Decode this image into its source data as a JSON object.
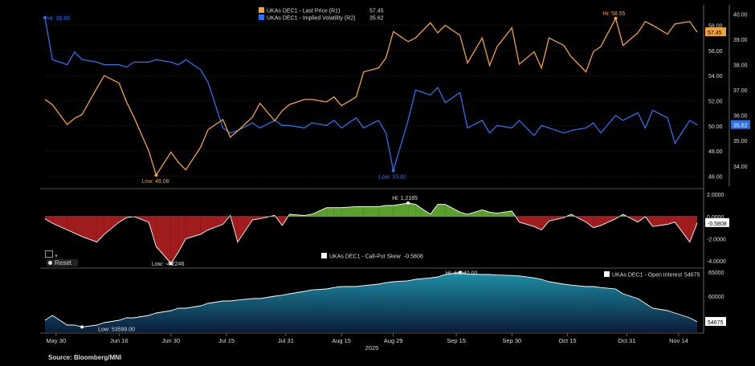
{
  "colors": {
    "background": "#000000",
    "price": "#f2a33a",
    "iv": "#2f6fe8",
    "skew_positive": "#5aa02c",
    "skew_negative": "#a11c1c",
    "oi_top": "#1d8fa6",
    "oi_bottom": "#0a1d3a",
    "text": "#dddddd",
    "grid": "#333333"
  },
  "source": "Source: Bloomberg/MNI",
  "controls": {
    "reset_label": "Reset"
  },
  "chart_data": [
    {
      "type": "line",
      "panel": "price-iv",
      "x_dates": [
        "2025-05-27",
        "2025-05-29",
        "2025-06-02",
        "2025-06-04",
        "2025-06-06",
        "2025-06-10",
        "2025-06-12",
        "2025-06-16",
        "2025-06-18",
        "2025-06-20",
        "2025-06-24",
        "2025-06-26",
        "2025-06-30",
        "2025-07-02",
        "2025-07-04",
        "2025-07-08",
        "2025-07-10",
        "2025-07-14",
        "2025-07-16",
        "2025-07-18",
        "2025-07-22",
        "2025-07-24",
        "2025-07-28",
        "2025-07-30",
        "2025-08-01",
        "2025-08-05",
        "2025-08-07",
        "2025-08-11",
        "2025-08-13",
        "2025-08-15",
        "2025-08-19",
        "2025-08-21",
        "2025-08-25",
        "2025-08-27",
        "2025-08-29",
        "2025-09-02",
        "2025-09-04",
        "2025-09-08",
        "2025-09-10",
        "2025-09-12",
        "2025-09-16",
        "2025-09-18",
        "2025-09-22",
        "2025-09-24",
        "2025-09-26",
        "2025-09-30",
        "2025-10-02",
        "2025-10-06",
        "2025-10-08",
        "2025-10-10",
        "2025-10-14",
        "2025-10-16",
        "2025-10-20",
        "2025-10-22",
        "2025-10-24",
        "2025-10-28",
        "2025-10-30",
        "2025-11-03",
        "2025-11-05",
        "2025-11-07",
        "2025-11-11",
        "2025-11-13",
        "2025-11-17",
        "2025-11-19"
      ],
      "series": [
        {
          "name": "UKAs DEC1 - Last Price (R1)",
          "axis": "R1",
          "last_value": 57.45,
          "hi_label": "Hi: 58.55",
          "low_label": "Low: 46.08",
          "values": [
            52.1,
            51.7,
            50.1,
            50.6,
            50.9,
            53.0,
            54.0,
            53.4,
            51.9,
            50.7,
            48.0,
            46.08,
            47.9,
            47.1,
            46.5,
            48.3,
            49.7,
            50.5,
            49.1,
            49.6,
            50.7,
            51.8,
            50.4,
            51.2,
            51.7,
            52.1,
            52.1,
            51.9,
            52.3,
            51.6,
            52.3,
            54.3,
            54.6,
            55.4,
            57.5,
            56.7,
            57.0,
            58.2,
            57.4,
            58.0,
            57.2,
            55.0,
            57.0,
            54.8,
            56.3,
            57.8,
            54.9,
            55.9,
            54.6,
            57.0,
            56.4,
            55.5,
            54.3,
            55.9,
            56.3,
            58.55,
            56.4,
            57.4,
            58.3,
            58.0,
            57.3,
            58.1,
            58.3,
            57.45
          ]
        },
        {
          "name": "UKAs DEC1 - Implied Volatility (R2)",
          "axis": "R2",
          "last_value": 35.62,
          "hi_label": "Hi: 39.86",
          "low_label": "Low: 33.82",
          "values": [
            39.86,
            38.2,
            38.0,
            38.5,
            38.2,
            38.1,
            38.0,
            38.0,
            37.9,
            38.1,
            38.1,
            38.2,
            38.1,
            38.0,
            38.2,
            37.8,
            37.3,
            35.5,
            35.3,
            35.4,
            35.7,
            35.5,
            35.8,
            35.6,
            35.6,
            35.5,
            35.7,
            35.6,
            35.8,
            35.5,
            35.9,
            35.5,
            35.8,
            35.3,
            33.82,
            35.8,
            37.0,
            36.8,
            37.1,
            36.5,
            36.9,
            35.5,
            35.8,
            35.3,
            35.6,
            35.5,
            35.8,
            35.2,
            35.6,
            35.5,
            35.3,
            35.4,
            35.5,
            35.7,
            35.3,
            36.0,
            35.8,
            36.1,
            35.5,
            36.2,
            35.9,
            34.9,
            35.8,
            35.62
          ]
        }
      ],
      "r1_ticks": [
        46.0,
        48.0,
        50.0,
        52.0,
        54.0,
        56.0,
        58.0
      ],
      "r2_ticks": [
        34.0,
        35.0,
        36.0,
        37.0,
        38.0,
        39.0,
        40.0
      ]
    },
    {
      "type": "area",
      "panel": "skew",
      "series": [
        {
          "name": "UKAs DEC1 - Call-Put Skew",
          "last_value": -0.5808,
          "hi_label": "Hi: 1.2185",
          "low_label": "Low: -4.2246",
          "values": [
            -0.2,
            -0.6,
            -1.2,
            -1.5,
            -1.8,
            -2.3,
            -1.6,
            -0.5,
            -0.1,
            0.0,
            -0.5,
            -2.7,
            -4.2246,
            -3.2,
            -2.0,
            -1.6,
            -1.2,
            -0.7,
            0.1,
            -2.3,
            -0.3,
            -0.2,
            0.1,
            -0.8,
            0.2,
            0.1,
            0.2,
            0.8,
            0.8,
            0.8,
            0.9,
            0.9,
            0.9,
            1.0,
            1.0,
            1.2185,
            1.1,
            0.2,
            1.1,
            1.1,
            0.4,
            0.2,
            0.6,
            0.4,
            0.3,
            0.5,
            -0.5,
            -0.9,
            -1.2,
            -0.4,
            -0.1,
            0.2,
            -0.5,
            -1.0,
            -0.8,
            -0.2,
            0.2,
            -0.5,
            0.0,
            -0.9,
            -0.7,
            -0.5,
            -2.3,
            -0.5808
          ]
        }
      ],
      "y_ticks": [
        -4.0,
        -2.0,
        0.0,
        2.0
      ],
      "y_tick_labels": [
        "-4.0000",
        "-2.0000",
        "0.0000",
        "2.0000"
      ],
      "last_label": "-0.5808"
    },
    {
      "type": "area",
      "panel": "open-interest",
      "series": [
        {
          "name": "UKAs DEC1 - Open Interest",
          "last_value": 54675,
          "hi_label": "Hi: 64940.00",
          "low_label": "Low: 53599.00",
          "values": [
            55000,
            56000,
            54000,
            54000,
            53599,
            54000,
            54500,
            55000,
            55500,
            55500,
            56000,
            56500,
            57000,
            57500,
            57500,
            58000,
            58500,
            59000,
            59000,
            59200,
            59500,
            59500,
            60000,
            60200,
            60500,
            61000,
            61300,
            61500,
            61800,
            62000,
            62000,
            62200,
            62500,
            62800,
            63000,
            63200,
            63500,
            63800,
            64000,
            64500,
            64940,
            64600,
            64500,
            64500,
            64400,
            64300,
            64200,
            63800,
            63500,
            63000,
            62500,
            62300,
            62000,
            62000,
            61800,
            61500,
            60500,
            59500,
            58500,
            57500,
            57000,
            56500,
            55500,
            54675
          ]
        }
      ],
      "y_ticks": [
        60000,
        65000
      ],
      "y_tick_labels": [
        "60000",
        "65000"
      ],
      "last_label": "54675"
    }
  ],
  "x_axis": {
    "tick_labels": [
      "May 30",
      "Jun 16",
      "Jun 30",
      "Jul 15",
      "Jul 31",
      "Aug 15",
      "Aug 29",
      "Sep 15",
      "Sep 30",
      "Oct 15",
      "Oct 31",
      "Nov 14"
    ],
    "year_label": "2025"
  }
}
